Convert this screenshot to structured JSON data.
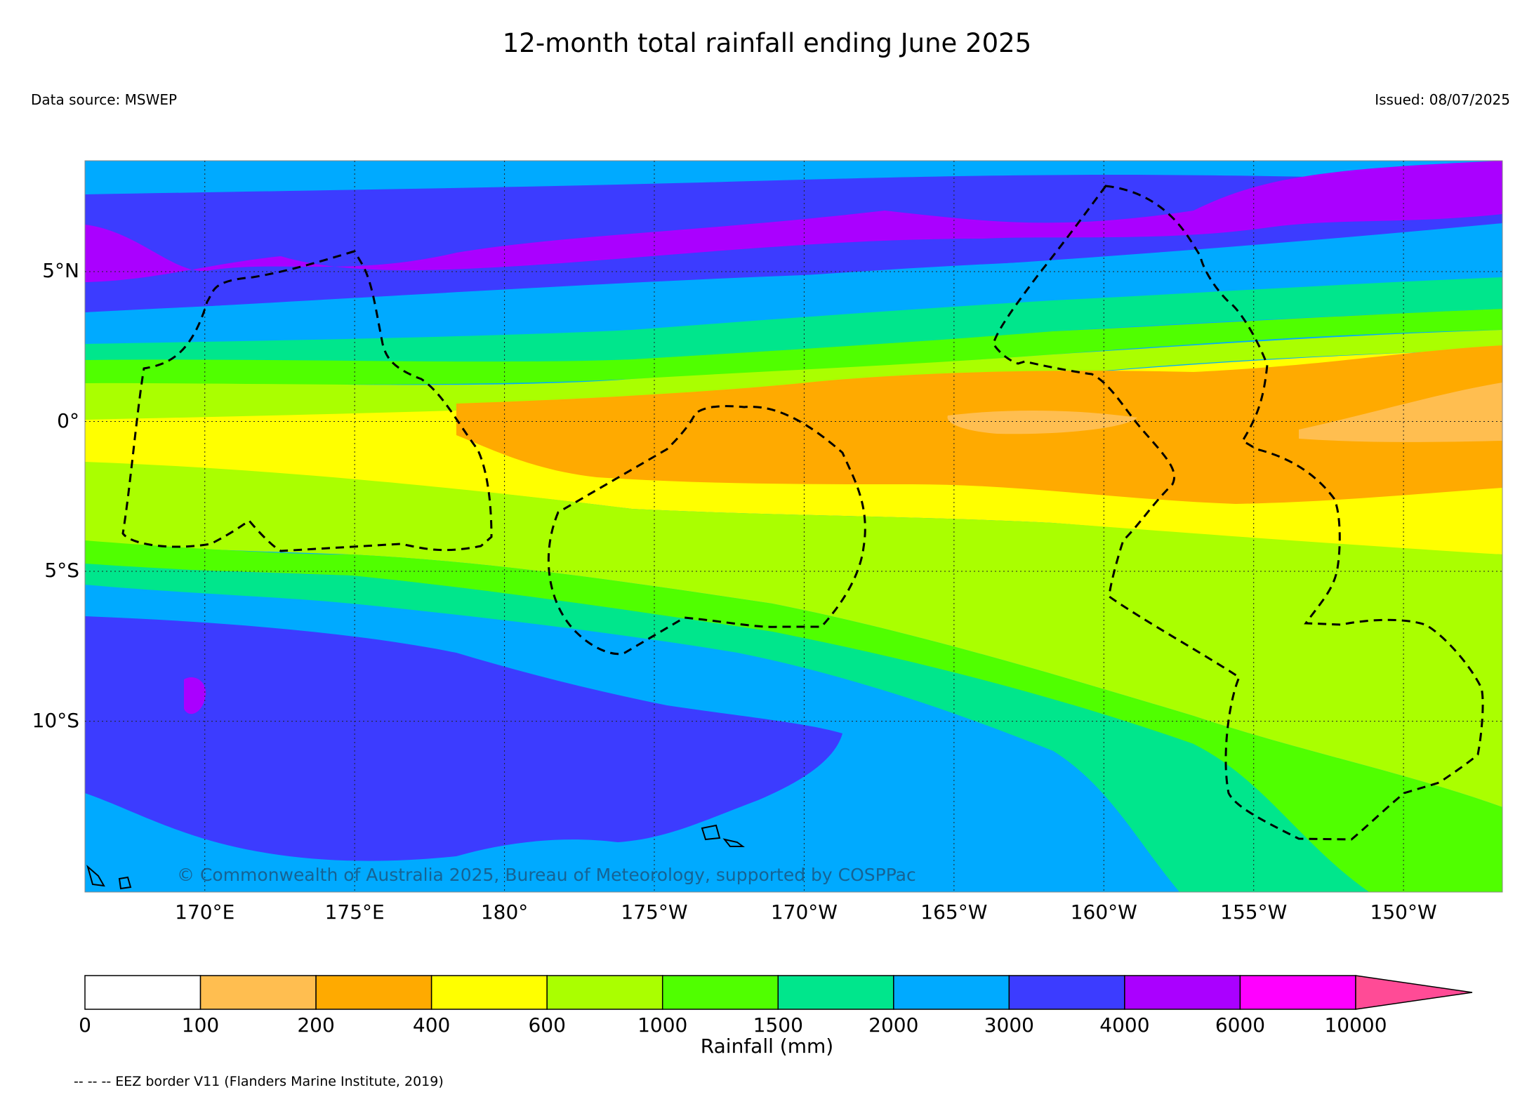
{
  "title": "12-month total rainfall ending June 2025",
  "data_source": "Data source: MSWEP",
  "issued": "Issued: 08/07/2025",
  "copyright": "© Commonwealth of Australia 2025, Bureau of Meteorology, supported by COSPPac",
  "map": {
    "lat_range": [
      -15.7,
      8.7
    ],
    "lon_range": [
      166.0,
      213.3
    ],
    "lat_ticks": [
      {
        "value": 5,
        "label": "5°N"
      },
      {
        "value": 0,
        "label": "0°"
      },
      {
        "value": -5,
        "label": "5°S"
      },
      {
        "value": -10,
        "label": "10°S"
      }
    ],
    "lon_ticks": [
      {
        "value": 170,
        "label": "170°E"
      },
      {
        "value": 175,
        "label": "175°E"
      },
      {
        "value": 180,
        "label": "180°"
      },
      {
        "value": 185,
        "label": "175°W"
      },
      {
        "value": 190,
        "label": "170°W"
      },
      {
        "value": 195,
        "label": "165°W"
      },
      {
        "value": 200,
        "label": "160°W"
      },
      {
        "value": 205,
        "label": "155°W"
      },
      {
        "value": 210,
        "label": "150°W"
      }
    ],
    "grid_lines": "dotted"
  },
  "colorbar": {
    "label": "Rainfall (mm)",
    "ticks": [
      "0",
      "100",
      "200",
      "400",
      "600",
      "1000",
      "1500",
      "2000",
      "3000",
      "4000",
      "6000",
      "10000"
    ],
    "colors": [
      "#ffffff",
      "#ffbe50",
      "#ffaa00",
      "#ffff00",
      "#aaff00",
      "#50ff00",
      "#00e68c",
      "#00aaff",
      "#3c3cff",
      "#aa00ff",
      "#ff00ff"
    ],
    "extend_color": "#ff4b96"
  },
  "legend_note": "-- -- -- EEZ border V11 (Flanders Marine Institute, 2019)"
}
